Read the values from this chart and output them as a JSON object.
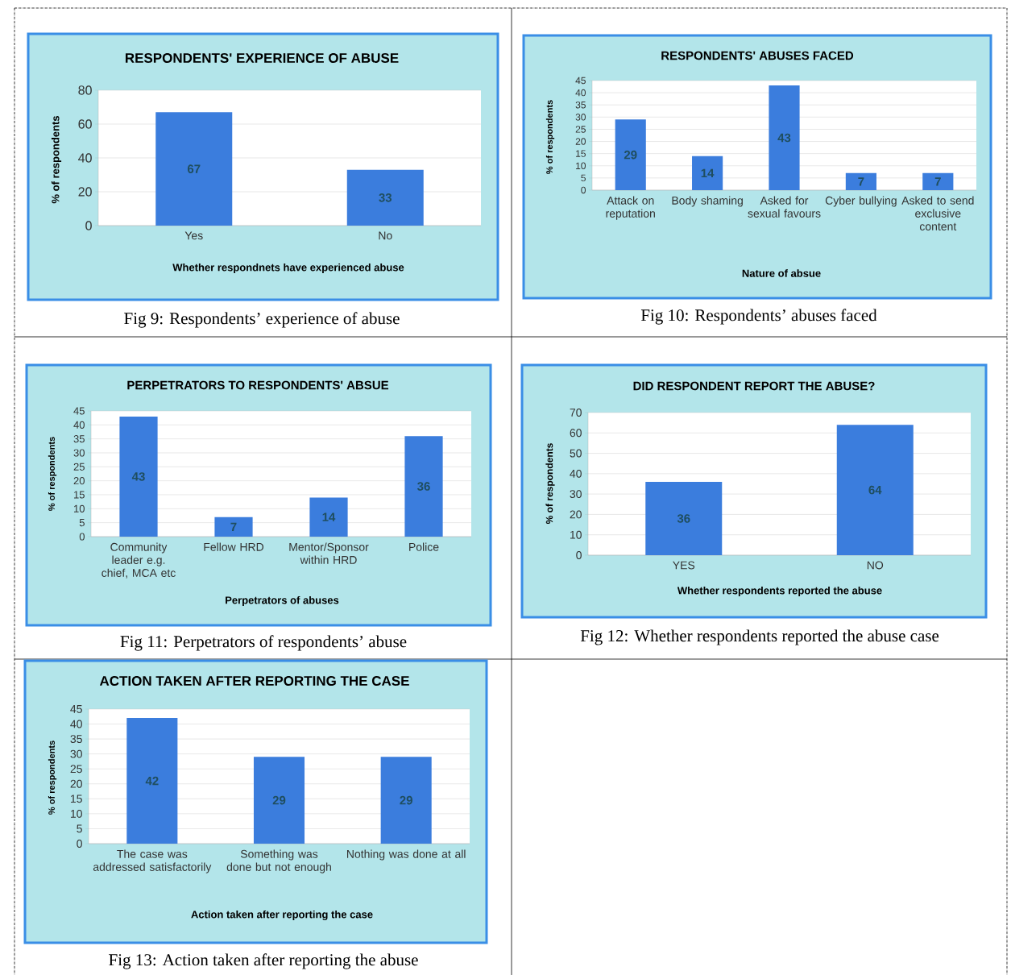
{
  "chart_data": [
    {
      "type": "bar",
      "title": "RESPONDENTS' EXPERIENCE OF ABUSE",
      "xlabel": "Whether respondnets have experienced abuse",
      "ylabel": "% of respondents",
      "categories": [
        "Yes",
        "No"
      ],
      "values": [
        67,
        33
      ],
      "color": "#3b7ddd",
      "ylim": [
        0,
        80
      ],
      "yticks": [
        0,
        20,
        40,
        60,
        80
      ],
      "grid": "y",
      "data_labels": true,
      "annotations": [
        "Fig 9: Respondents’ experience of abuse"
      ]
    },
    {
      "type": "bar",
      "title": "RESPONDENTS' ABUSES FACED",
      "xlabel": "Nature of absue",
      "ylabel": "% of respondents",
      "categories": [
        "Attack on reputation",
        "Body shaming",
        "Asked for sexual favours",
        "Cyber bullying",
        "Asked to send exclusive content"
      ],
      "values": [
        29,
        14,
        43,
        7,
        7
      ],
      "color": "#3b7ddd",
      "ylim": [
        0,
        45
      ],
      "yticks": [
        0,
        5,
        10,
        15,
        20,
        25,
        30,
        35,
        40,
        45
      ],
      "grid": "y",
      "data_labels": true,
      "annotations": [
        "Fig 10: Respondents’ abuses faced"
      ]
    },
    {
      "type": "bar",
      "title": "PERPETRATORS TO RESPONDENTS' ABSUE",
      "xlabel": "Perpetrators of abuses",
      "ylabel": "% of respondents",
      "categories": [
        "Community leader e.g. chief, MCA etc",
        "Fellow HRD",
        "Mentor/Sponsor within HRD",
        "Police"
      ],
      "values": [
        43,
        7,
        14,
        36
      ],
      "color": "#3b7ddd",
      "ylim": [
        0,
        45
      ],
      "yticks": [
        0,
        5,
        10,
        15,
        20,
        25,
        30,
        35,
        40,
        45
      ],
      "grid": "y",
      "data_labels": true,
      "annotations": [
        "Fig 11: Perpetrators of respondents’ abuse"
      ]
    },
    {
      "type": "bar",
      "title": "DID RESPONDENT REPORT THE ABUSE?",
      "xlabel": "Whether respondents reported the abuse",
      "ylabel": "% of respondents",
      "categories": [
        "YES",
        "NO"
      ],
      "values": [
        36,
        64
      ],
      "color": "#3b7ddd",
      "ylim": [
        0,
        70
      ],
      "yticks": [
        0,
        10,
        20,
        30,
        40,
        50,
        60,
        70
      ],
      "grid": "y",
      "data_labels": true,
      "annotations": [
        "Fig 12: Whether respondents reported the abuse case"
      ]
    },
    {
      "type": "bar",
      "title": "ACTION TAKEN AFTER REPORTING THE CASE",
      "xlabel": "Action taken after reporting the case",
      "ylabel": "% of respondents",
      "categories": [
        "The case was addressed satisfactorily",
        "Something was done but not enough",
        "Nothing was done at all"
      ],
      "values": [
        42,
        29,
        29
      ],
      "color": "#3b7ddd",
      "ylim": [
        0,
        45
      ],
      "yticks": [
        0,
        5,
        10,
        15,
        20,
        25,
        30,
        35,
        40,
        45
      ],
      "grid": "y",
      "data_labels": true,
      "annotations": [
        "Fig 13: Action taken after reporting the abuse"
      ]
    }
  ]
}
